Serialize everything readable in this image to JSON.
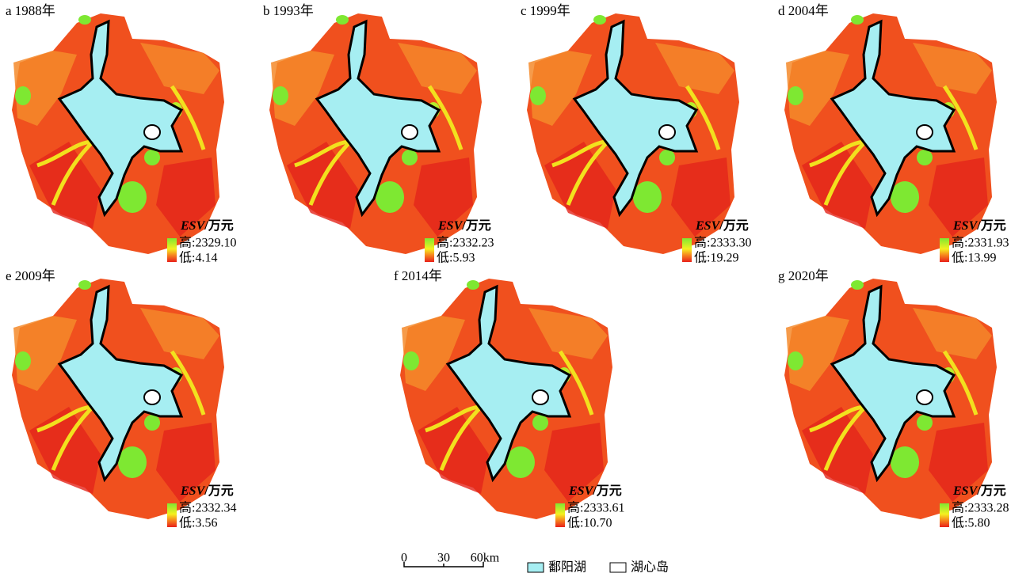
{
  "panels": [
    {
      "letter": "a",
      "year": "1988年",
      "high": "高:2329.10",
      "low": "低:4.14"
    },
    {
      "letter": "b",
      "year": "1993年",
      "high": "高:2332.23",
      "low": "低:5.93"
    },
    {
      "letter": "c",
      "year": "1999年",
      "high": "高:2333.30",
      "low": "低:19.29"
    },
    {
      "letter": "d",
      "year": "2004年",
      "high": "高:2331.93",
      "low": "低:13.99"
    },
    {
      "letter": "e",
      "year": "2009年",
      "high": "高:2332.34",
      "low": "低:3.56"
    },
    {
      "letter": "f",
      "year": "2014年",
      "high": "高:2333.61",
      "low": "低:10.70"
    },
    {
      "letter": "g",
      "year": "2020年",
      "high": "高:2333.28",
      "low": "低:5.80"
    }
  ],
  "legend_title": {
    "variable": "ESV",
    "unit": "/万元"
  },
  "scale_bar": {
    "labels": [
      "0",
      "30",
      "60km"
    ]
  },
  "map_legend": {
    "lake": "鄱阳湖",
    "island": "湖心岛"
  }
}
